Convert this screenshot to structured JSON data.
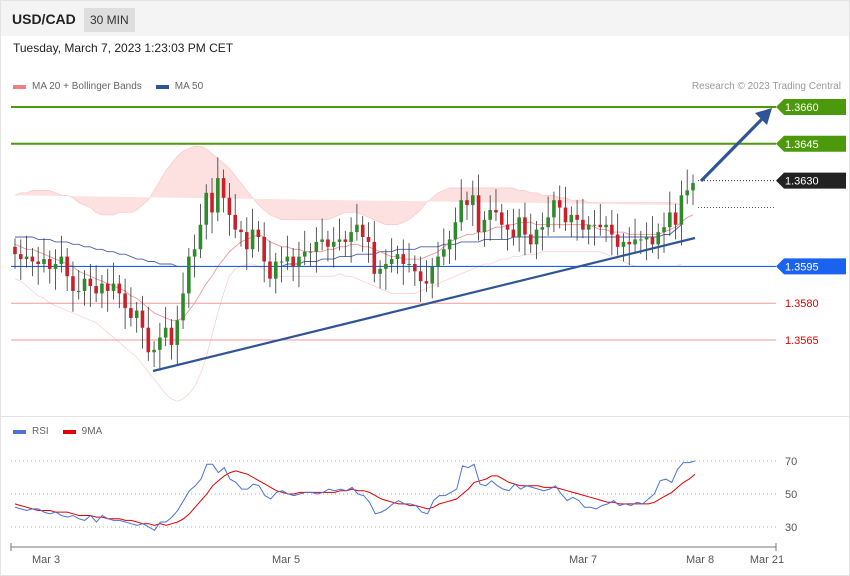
{
  "header": {
    "symbol": "USD/CAD",
    "timeframe": "30 MIN"
  },
  "datetime": "Tuesday, March 7, 2023 1:23:03 PM CET",
  "legend_main": [
    {
      "label": "MA 20 + Bollinger Bands",
      "color": "#f08080"
    },
    {
      "label": "MA 50",
      "color": "#2f5597"
    }
  ],
  "legend_rsi": [
    {
      "label": "RSI",
      "color": "#4a72d9"
    },
    {
      "label": "9MA",
      "color": "#e00000"
    }
  ],
  "credit": "Research © 2023 Trading Central",
  "chart_data": {
    "type": "candlestick",
    "price_axis": {
      "min": 1.354,
      "max": 1.3675
    },
    "levels": [
      {
        "label": "1.3660",
        "value": 1.366,
        "color": "#4c9a0c",
        "style": "tag"
      },
      {
        "label": "1.3645",
        "value": 1.3645,
        "color": "#4c9a0c",
        "style": "tag"
      },
      {
        "label": "1.3630",
        "value": 1.363,
        "color": "#222222",
        "style": "tag-dotted"
      },
      {
        "label": "1.3595",
        "value": 1.3595,
        "color": "#1a62f0",
        "style": "tag"
      },
      {
        "label": "1.3580",
        "value": 1.358,
        "color": "#e00000",
        "style": "text"
      },
      {
        "label": "1.3565",
        "value": 1.3565,
        "color": "#e00000",
        "style": "text"
      }
    ],
    "trendline": [
      [
        0,
        1.3557
      ],
      [
        1,
        1.3607
      ]
    ],
    "forecast_arrow": [
      [
        0,
        1.363
      ],
      [
        1,
        1.366
      ]
    ],
    "x_labels": [
      "Mar 3",
      "Mar 5",
      "Mar 7",
      "Mar 8",
      "Mar 21"
    ],
    "closes": [
      1.36,
      1.3598,
      1.3599,
      1.3597,
      1.3596,
      1.3598,
      1.3594,
      1.3596,
      1.3599,
      1.3591,
      1.3585,
      1.3585,
      1.359,
      1.3587,
      1.3584,
      1.3588,
      1.3585,
      1.3588,
      1.3584,
      1.3578,
      1.3574,
      1.3577,
      1.357,
      1.356,
      1.3561,
      1.3566,
      1.357,
      1.3563,
      1.3573,
      1.3584,
      1.3599,
      1.3602,
      1.3612,
      1.3625,
      1.3617,
      1.3631,
      1.3623,
      1.3616,
      1.361,
      1.3609,
      1.3602,
      1.361,
      1.3607,
      1.3597,
      1.359,
      1.3597,
      1.3597,
      1.3599,
      1.3595,
      1.3599,
      1.3601,
      1.3601,
      1.3605,
      1.3606,
      1.3603,
      1.3605,
      1.3606,
      1.3605,
      1.3609,
      1.3612,
      1.3607,
      1.3605,
      1.3592,
      1.3594,
      1.3596,
      1.3598,
      1.36,
      1.3596,
      1.3596,
      1.3593,
      1.3589,
      1.3588,
      1.3595,
      1.3599,
      1.3602,
      1.3606,
      1.3613,
      1.3622,
      1.362,
      1.3624,
      1.3609,
      1.3614,
      1.3618,
      1.3617,
      1.3612,
      1.361,
      1.3607,
      1.3615,
      1.3608,
      1.3604,
      1.361,
      1.3611,
      1.3615,
      1.3622,
      1.3619,
      1.3613,
      1.3616,
      1.3614,
      1.361,
      1.3612,
      1.3612,
      1.3611,
      1.3612,
      1.3608,
      1.3603,
      1.3605,
      1.3604,
      1.3606,
      1.3606,
      1.3607,
      1.3604,
      1.3609,
      1.3611,
      1.3617,
      1.3612,
      1.3624,
      1.3626,
      1.3629
    ],
    "ma20": [
      1.3604,
      1.3603,
      1.3602,
      1.3602,
      1.3601,
      1.36,
      1.3599,
      1.3598,
      1.3597,
      1.3596,
      1.3595,
      1.3593,
      1.3592,
      1.3591,
      1.359,
      1.3589,
      1.3588,
      1.3587,
      1.3586,
      1.3585,
      1.3583,
      1.3582,
      1.358,
      1.3578,
      1.3576,
      1.3575,
      1.3574,
      1.3573,
      1.3573,
      1.3574,
      1.3577,
      1.358,
      1.3584,
      1.3588,
      1.3591,
      1.3595,
      1.3598,
      1.3601,
      1.3603,
      1.3605,
      1.3606,
      1.3607,
      1.3608,
      1.3607,
      1.3605,
      1.3604,
      1.3603,
      1.3603,
      1.3602,
      1.3602,
      1.3601,
      1.3601,
      1.3601,
      1.3601,
      1.3602,
      1.3602,
      1.3603,
      1.3603,
      1.3604,
      1.3604,
      1.3603,
      1.3603,
      1.3602,
      1.3601,
      1.36,
      1.3599,
      1.3599,
      1.3598,
      1.3598,
      1.3598,
      1.3598,
      1.3599,
      1.36,
      1.3601,
      1.3603,
      1.3605,
      1.3606,
      1.3607,
      1.3608,
      1.3608,
      1.3609,
      1.3609,
      1.361,
      1.3611,
      1.3611,
      1.3612,
      1.3612,
      1.3613,
      1.3613,
      1.3613,
      1.3612,
      1.3612,
      1.3612,
      1.3612,
      1.3612,
      1.3612,
      1.3612,
      1.3612,
      1.3612,
      1.3612,
      1.3611,
      1.361,
      1.361,
      1.3609,
      1.3609,
      1.3609,
      1.3608,
      1.3608,
      1.3608,
      1.3608,
      1.3608,
      1.3608,
      1.3609,
      1.361,
      1.3611,
      1.3613,
      1.3615,
      1.3616
    ],
    "bb_upper": [
      1.3624,
      1.3625,
      1.3625,
      1.3626,
      1.3626,
      1.3626,
      1.3626,
      1.3625,
      1.3624,
      1.3624,
      1.3623,
      1.3621,
      1.362,
      1.3619,
      1.3617,
      1.3616,
      1.3616,
      1.3616,
      1.3617,
      1.3617,
      1.3617,
      1.3618,
      1.362,
      1.3622,
      1.3626,
      1.363,
      1.3634,
      1.3637,
      1.364,
      1.3642,
      1.3643,
      1.3644,
      1.3644,
      1.3643,
      1.3641,
      1.3639,
      1.3637,
      1.3635,
      1.3632,
      1.3629,
      1.3626,
      1.3623,
      1.362,
      1.3618,
      1.3616,
      1.3615,
      1.3614,
      1.3614,
      1.3614,
      1.3614,
      1.3614,
      1.3614,
      1.3614,
      1.3614,
      1.3614,
      1.3615,
      1.3616,
      1.3617,
      1.3617,
      1.3617,
      1.3616,
      1.3615,
      1.3614,
      1.3613,
      1.3612,
      1.3612,
      1.3612,
      1.3613,
      1.3614,
      1.3616,
      1.3618,
      1.3621,
      1.3623,
      1.3625,
      1.3626,
      1.3627,
      1.3627,
      1.3627,
      1.3627,
      1.3627,
      1.3627,
      1.3627,
      1.3627,
      1.3627,
      1.3627,
      1.3627,
      1.3627,
      1.3626,
      1.3626,
      1.3625,
      1.3625,
      1.3624,
      1.3624,
      1.3624,
      1.3623,
      1.3623,
      1.3622,
      1.3622,
      1.3622,
      1.3621,
      1.3621,
      1.3621,
      1.3621,
      1.3621,
      1.3621,
      1.3621,
      1.3621,
      1.3621,
      1.3621,
      1.3621,
      1.3621,
      1.3621,
      1.3621,
      1.3621,
      1.3621,
      1.362
    ],
    "bb_lower": [
      1.359,
      1.3589,
      1.3587,
      1.3585,
      1.3583,
      1.3582,
      1.358,
      1.3579,
      1.3578,
      1.3577,
      1.3576,
      1.3575,
      1.3574,
      1.3573,
      1.3572,
      1.357,
      1.3568,
      1.3566,
      1.3564,
      1.3562,
      1.356,
      1.3558,
      1.3555,
      1.3552,
      1.3549,
      1.3546,
      1.3543,
      1.3541,
      1.354,
      1.3541,
      1.3543,
      1.3546,
      1.3551,
      1.3558,
      1.3567,
      1.3576,
      1.3584,
      1.3591,
      1.3594,
      1.3595,
      1.3596,
      1.3596,
      1.3595,
      1.3594,
      1.3592,
      1.3591,
      1.3591,
      1.3591,
      1.3591,
      1.3591,
      1.3591,
      1.3591,
      1.3591,
      1.3591,
      1.3591,
      1.3591,
      1.3592,
      1.3591,
      1.3591,
      1.359,
      1.3589,
      1.3588,
      1.3587,
      1.3586,
      1.3585,
      1.3584,
      1.3584,
      1.3584,
      1.3584,
      1.3584,
      1.3585,
      1.3586,
      1.3587,
      1.3588,
      1.3589,
      1.359,
      1.3591,
      1.3592,
      1.3593,
      1.3594,
      1.3595,
      1.3596,
      1.3596,
      1.3597,
      1.3598,
      1.3598,
      1.3599,
      1.3599,
      1.36,
      1.36,
      1.36,
      1.3601,
      1.3601,
      1.3601,
      1.3601,
      1.3601,
      1.3601,
      1.3601,
      1.3601,
      1.3601,
      1.3601,
      1.3601,
      1.36,
      1.3599,
      1.3598,
      1.3597,
      1.3596,
      1.3595,
      1.3595,
      1.3595,
      1.3595,
      1.3595,
      1.3595,
      1.3595,
      1.3595,
      1.3596
    ],
    "ma50": [
      1.3607,
      1.3607,
      1.3607,
      1.3607,
      1.3606,
      1.3606,
      1.3606,
      1.3605,
      1.3605,
      1.3605,
      1.3604,
      1.3604,
      1.3603,
      1.3603,
      1.3602,
      1.3602,
      1.3601,
      1.3601,
      1.36,
      1.36,
      1.3599,
      1.3598,
      1.3598,
      1.3597,
      1.3597,
      1.3596,
      1.3596,
      1.3596,
      1.3595,
      1.3595,
      1.3595,
      1.3595,
      1.3595,
      1.3595,
      1.3595,
      1.3595,
      1.3595,
      1.3595,
      1.3595,
      1.3595,
      1.3595,
      1.3595,
      1.3595,
      1.3595,
      1.3595,
      1.3595,
      1.3595,
      1.3596,
      1.3596,
      1.3596,
      1.3597,
      1.3597,
      1.3597,
      1.3598,
      1.3598,
      1.3598,
      1.3599,
      1.3599,
      1.3599,
      1.36,
      1.36,
      1.36,
      1.36,
      1.3601,
      1.3601,
      1.3601,
      1.3602,
      1.3602,
      1.3602,
      1.3602,
      1.3603,
      1.3603,
      1.3603,
      1.3603,
      1.3604,
      1.3604,
      1.3604,
      1.3605,
      1.3605,
      1.3605,
      1.3605,
      1.3606,
      1.3606,
      1.3606,
      1.3606,
      1.3606,
      1.3607,
      1.3607,
      1.3607,
      1.3607,
      1.3607,
      1.3607,
      1.3607,
      1.3607,
      1.3607,
      1.3607,
      1.3607,
      1.3607,
      1.3607,
      1.3607,
      1.3607,
      1.3607,
      1.3607,
      1.3607,
      1.3607,
      1.3607,
      1.3607,
      1.3607,
      1.3607,
      1.3607,
      1.3607,
      1.3607,
      1.3608,
      1.3608,
      1.361,
      1.3612
    ],
    "rsi": {
      "ticks": [
        70,
        50,
        30
      ],
      "range": [
        20,
        80
      ],
      "rsi": [
        42,
        41,
        40,
        41,
        41,
        39,
        38,
        39,
        37,
        36,
        37,
        35,
        34,
        37,
        33,
        37,
        35,
        34,
        34,
        33,
        32,
        31,
        32,
        30,
        28,
        33,
        33,
        36,
        40,
        46,
        52,
        55,
        59,
        68,
        68,
        63,
        66,
        59,
        57,
        53,
        53,
        56,
        55,
        49,
        47,
        51,
        52,
        50,
        49,
        50,
        51,
        51,
        50,
        51,
        53,
        52,
        53,
        52,
        54,
        50,
        49,
        45,
        38,
        39,
        41,
        44,
        46,
        44,
        44,
        43,
        39,
        38,
        46,
        49,
        49,
        51,
        53,
        67,
        66,
        68,
        56,
        55,
        58,
        55,
        53,
        52,
        56,
        53,
        55,
        54,
        53,
        52,
        53,
        55,
        50,
        46,
        48,
        46,
        42,
        42,
        41,
        43,
        44,
        46,
        43,
        44,
        43,
        45,
        44,
        47,
        50,
        58,
        59,
        57,
        65,
        69,
        69,
        70
      ],
      "ma9": [
        44,
        43,
        42,
        41,
        40,
        40,
        40,
        39,
        39,
        39,
        38,
        37,
        37,
        37,
        36,
        36,
        35,
        35,
        35,
        34,
        34,
        33,
        32,
        32,
        31,
        32,
        31,
        32,
        33,
        35,
        38,
        42,
        46,
        50,
        55,
        58,
        61,
        63,
        64,
        63,
        62,
        60,
        58,
        56,
        54,
        52,
        51,
        50,
        50,
        51,
        51,
        51,
        51,
        51,
        51,
        51,
        52,
        52,
        53,
        52,
        52,
        51,
        49,
        47,
        46,
        45,
        44,
        44,
        43,
        43,
        42,
        41,
        42,
        44,
        45,
        46,
        47,
        50,
        53,
        57,
        58,
        59,
        61,
        61,
        59,
        57,
        56,
        55,
        55,
        55,
        55,
        54,
        54,
        54,
        53,
        52,
        51,
        50,
        49,
        48,
        47,
        46,
        45,
        45,
        44,
        44,
        44,
        44,
        44,
        44,
        45,
        47,
        49,
        51,
        54,
        57,
        59,
        62
      ]
    }
  }
}
